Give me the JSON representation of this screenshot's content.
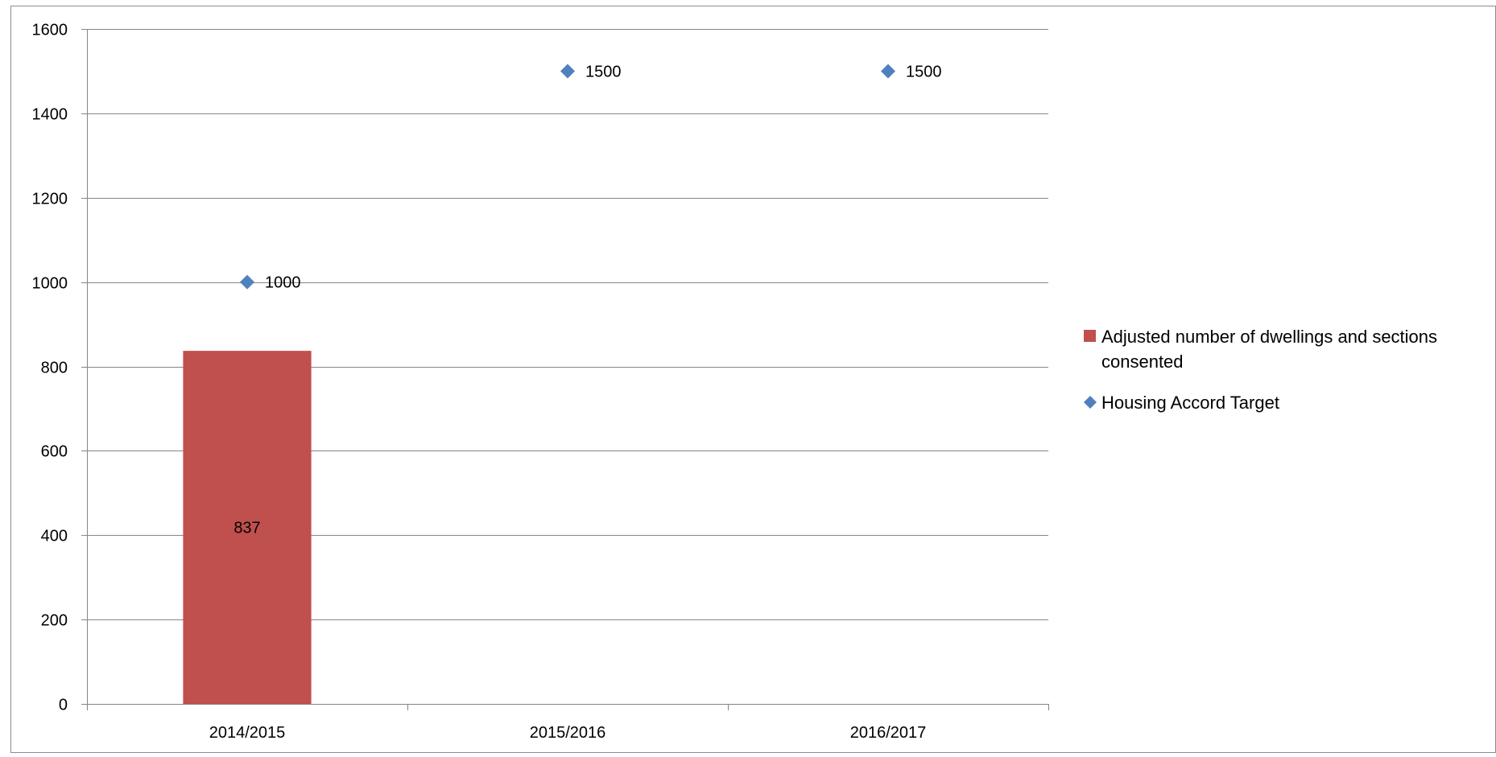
{
  "chart_data": {
    "type": "bar",
    "categories": [
      "2014/2015",
      "2015/2016",
      "2016/2017"
    ],
    "series": [
      {
        "name": "Adjusted number of dwellings and sections consented",
        "type": "bar",
        "values": [
          837,
          null,
          null
        ],
        "data_labels": [
          "837",
          "",
          ""
        ],
        "color": "#C0504D"
      },
      {
        "name": "Housing Accord Target",
        "type": "scatter",
        "marker": "diamond",
        "values": [
          1000,
          1500,
          1500
        ],
        "data_labels": [
          "1000",
          "1500",
          "1500"
        ],
        "color": "#4F81BD"
      }
    ],
    "y_ticks": [
      "0",
      "200",
      "400",
      "600",
      "800",
      "1000",
      "1200",
      "1400",
      "1600"
    ],
    "ylim": [
      0,
      1600
    ],
    "grid": true,
    "legend_position": "right",
    "legend": [
      {
        "lines": [
          "Adjusted number of dwellings and sections",
          "consented"
        ]
      },
      {
        "lines": [
          "Housing Accord Target"
        ]
      }
    ]
  }
}
